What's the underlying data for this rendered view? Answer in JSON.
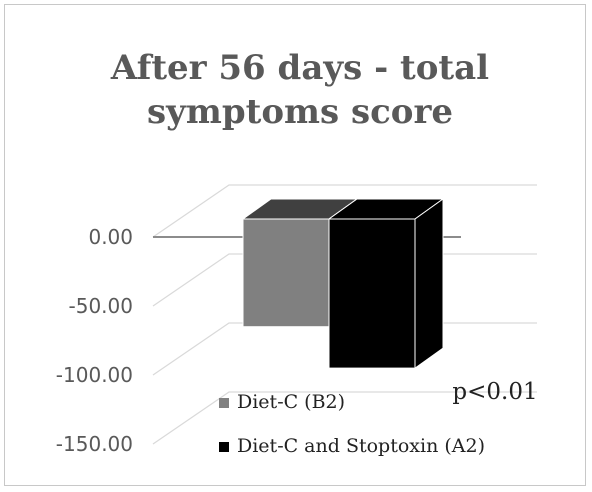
{
  "chart_data": {
    "type": "bar",
    "title_lines": [
      "After 56 days - total",
      "symptoms score"
    ],
    "categories": [
      ""
    ],
    "series": [
      {
        "name": "Diet-C (B2)",
        "values": [
          -65
        ],
        "color": "#808080"
      },
      {
        "name": "Diet-C and Stoptoxin (A2)",
        "values": [
          -95
        ],
        "color": "#000000"
      }
    ],
    "yticks": [
      "0.00",
      "-50.00",
      "-100.00",
      "-150.00"
    ],
    "ytick_values": [
      0,
      -50,
      -100,
      -150
    ],
    "ylim": [
      -150,
      0
    ],
    "annotation": "p<0.01",
    "legend_position": "bottom-right",
    "grid": true,
    "style": "3d-column"
  }
}
